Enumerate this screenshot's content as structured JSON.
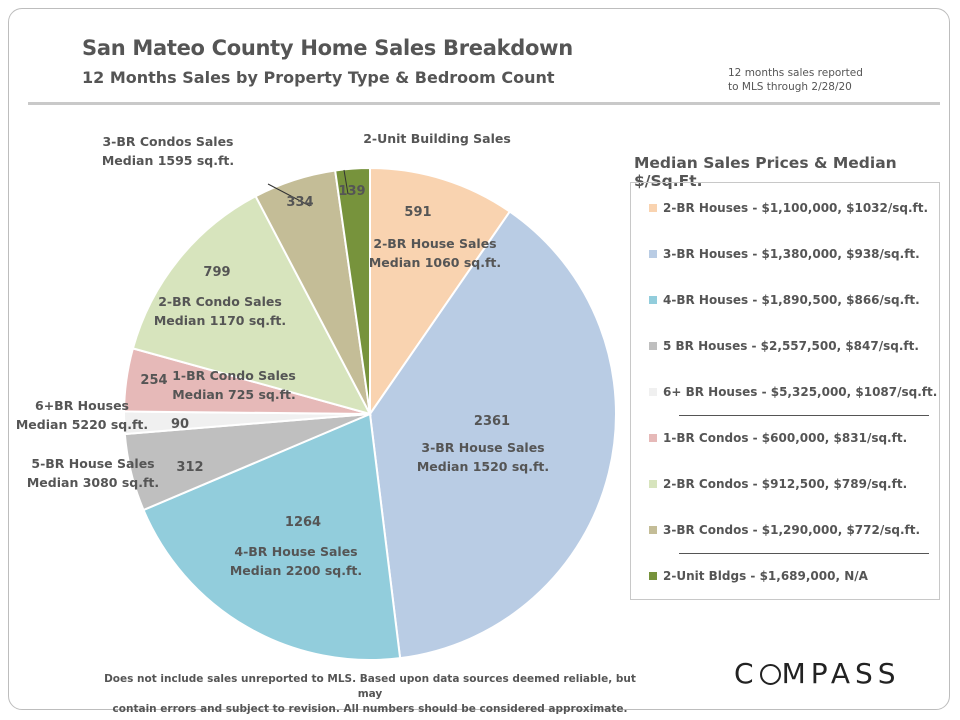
{
  "title": "San Mateo County Home Sales Breakdown",
  "subtitle": "12 Months Sales by Property Type & Bedroom Count",
  "note_top": [
    "12 months sales reported",
    "to MLS through 2/28/20"
  ],
  "chart_data": {
    "type": "pie",
    "slices": [
      {
        "value": 591,
        "label": [
          "2-BR House Sales",
          "Median 1060 sq.ft."
        ],
        "color": "#f9d3b0"
      },
      {
        "value": 2361,
        "label": [
          "3-BR House Sales",
          "Median 1520 sq.ft."
        ],
        "color": "#b9cce4"
      },
      {
        "value": 1264,
        "label": [
          "4-BR House Sales",
          "Median 2200 sq.ft."
        ],
        "color": "#92cddc"
      },
      {
        "value": 312,
        "label": [
          "5-BR House Sales",
          "Median 3080 sq.ft."
        ],
        "color": "#bfbfbf"
      },
      {
        "value": 90,
        "label": [
          "6+BR Houses",
          "Median 5220 sq.ft."
        ],
        "color": "#f0f0f0"
      },
      {
        "value": 254,
        "label": [
          "1-BR Condo Sales",
          "Median 725 sq.ft."
        ],
        "color": "#e6b9b8"
      },
      {
        "value": 799,
        "label": [
          "2-BR Condo Sales",
          "Median 1170 sq.ft."
        ],
        "color": "#d7e4bd"
      },
      {
        "value": 334,
        "label": [
          "3-BR Condos Sales",
          "Median 1595 sq.ft."
        ],
        "color": "#c4bd97"
      },
      {
        "value": 139,
        "label": [
          "2-Unit Building Sales"
        ],
        "color": "#77933c"
      }
    ]
  },
  "legend": {
    "title": "Median Sales Prices & Median $/Sq.Ft.",
    "items": [
      {
        "text": "2-BR Houses - $1,100,000, $1032/sq.ft.",
        "color": "#f9d3b0"
      },
      {
        "text": "3-BR Houses - $1,380,000, $938/sq.ft.",
        "color": "#b9cce4"
      },
      {
        "text": "4-BR Houses - $1,890,500, $866/sq.ft.",
        "color": "#92cddc"
      },
      {
        "text": "5 BR Houses - $2,557,500, $847/sq.ft.",
        "color": "#bfbfbf"
      },
      {
        "text": "6+ BR Houses - $5,325,000, $1087/sq.ft.",
        "color": "#f0f0f0"
      },
      {
        "text": "1-BR Condos - $600,000, $831/sq.ft.",
        "color": "#e6b9b8"
      },
      {
        "text": "2-BR Condos - $912,500, $789/sq.ft.",
        "color": "#d7e4bd"
      },
      {
        "text": "3-BR Condos - $1,290,000, $772/sq.ft.",
        "color": "#c4bd97"
      },
      {
        "text": "2-Unit Bldgs - $1,689,000, N/A",
        "color": "#77933c"
      }
    ]
  },
  "footer": [
    "Does not include sales unreported to MLS.  Based upon data sources deemed reliable, but may",
    "contain errors and subject to revision.  All numbers should be considered approximate."
  ],
  "logo": {
    "text": "COMPASS",
    "icon": "compass-logo"
  }
}
